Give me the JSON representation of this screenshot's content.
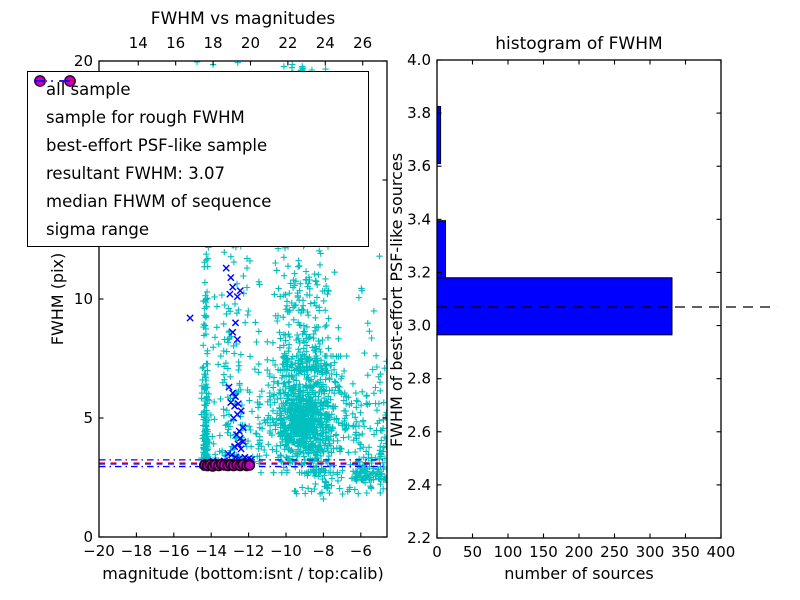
{
  "figure": {
    "left_title": "FWHM vs magnitudes",
    "right_title": "histogram of FWHM",
    "left_xlabel": "magnitude (bottom:isnt / top:calib)",
    "left_ylabel": "FWHM (pix)",
    "right_xlabel": "number of sources",
    "right_ylabel": "FWHM of best-effort PSF-like sources"
  },
  "legend": {
    "items": [
      {
        "label": "all sample",
        "marker": "plus"
      },
      {
        "label": "sample for rough FWHM",
        "marker": "x"
      },
      {
        "label": "best-effort PSF-like sample",
        "marker": "circle"
      },
      {
        "label": "resultant FWHM: 3.07",
        "marker": "dashed-blue"
      },
      {
        "label": "median FHWM of sequence",
        "marker": "dashed-red"
      },
      {
        "label": "sigma range",
        "marker": "dashdot-blue"
      }
    ]
  },
  "chart_data": [
    {
      "type": "scatter",
      "title": "FWHM vs magnitudes",
      "xlabel": "magnitude (bottom:isnt / top:calib)",
      "ylabel": "FWHM (pix)",
      "xlim": [
        -20,
        -4.6
      ],
      "ylim": [
        0,
        20
      ],
      "xticks_bottom": {
        "values": [
          -20,
          -18,
          -16,
          -14,
          -12,
          -10,
          -8,
          -6
        ],
        "labels": [
          "−20",
          "−18",
          "−16",
          "−14",
          "−12",
          "−10",
          "−8",
          "−6"
        ]
      },
      "xticks_top": {
        "values": [
          14,
          16,
          18,
          20,
          22,
          24,
          26
        ],
        "labels": [
          "14",
          "16",
          "18",
          "20",
          "22",
          "24",
          "26"
        ],
        "calib_minus_isnt": 31.9
      },
      "yticks": {
        "values": [
          0,
          5,
          10,
          15,
          20
        ],
        "labels": [
          "0",
          "5",
          "10",
          "15",
          "20"
        ]
      },
      "colors": {
        "all_sample": "#00bfbf",
        "rough": "#0000ff",
        "psf": "#bf00bf",
        "psf_edge": "#24001f",
        "resultant": "#0000ff",
        "median": "#ff0000",
        "sigma": "#0000ff"
      },
      "all_sample_clusters": [
        {
          "n": 150,
          "x": [
            -14.52,
            -14.08
          ],
          "y": [
            2.9,
            6.2
          ],
          "xd": "g",
          "yd": "low"
        },
        {
          "n": 55,
          "x": [
            -14.5,
            -14.15
          ],
          "y": [
            6.2,
            13
          ],
          "xd": "g",
          "yd": "low"
        },
        {
          "n": 6,
          "x": [
            -14.55,
            -14.0
          ],
          "y": [
            13,
            17
          ],
          "xd": "u",
          "yd": "u"
        },
        {
          "n": 95,
          "x": [
            -13.35,
            -12.35
          ],
          "y": [
            3.0,
            12
          ],
          "xd": "u",
          "yd": "low"
        },
        {
          "n": 40,
          "x": [
            -13.25,
            -12.4
          ],
          "y": [
            12,
            20
          ],
          "xd": "u",
          "yd": "u"
        },
        {
          "n": 28,
          "x": [
            -14.05,
            -13.35
          ],
          "y": [
            3.0,
            11
          ],
          "xd": "u",
          "yd": "low"
        },
        {
          "n": 620,
          "x": [
            -11.4,
            -6.3
          ],
          "y": [
            2.7,
            7.6
          ],
          "xd": "g",
          "yd": "g"
        },
        {
          "n": 300,
          "x": [
            -10.3,
            -7.7
          ],
          "y": [
            3.1,
            6.3
          ],
          "xd": "g",
          "yd": "g"
        },
        {
          "n": 230,
          "x": [
            -11.0,
            -7.2
          ],
          "y": [
            7.0,
            11.5
          ],
          "xd": "g",
          "yd": "low"
        },
        {
          "n": 80,
          "x": [
            -11.0,
            -7.3
          ],
          "y": [
            11.5,
            15.5
          ],
          "xd": "g",
          "yd": "u"
        },
        {
          "n": 32,
          "x": [
            -10.6,
            -7.6
          ],
          "y": [
            15.5,
            19.9
          ],
          "xd": "u",
          "yd": "u"
        },
        {
          "n": 14,
          "x": [
            -9.95,
            -8.6
          ],
          "y": [
            19.0,
            20.0
          ],
          "xd": "u",
          "yd": "u"
        },
        {
          "n": 130,
          "x": [
            -6.35,
            -4.6
          ],
          "y": [
            2.4,
            5.6
          ],
          "xd": "u",
          "yd": "low"
        },
        {
          "n": 30,
          "x": [
            -6.35,
            -4.6
          ],
          "y": [
            5.6,
            11.5
          ],
          "xd": "u",
          "yd": "low"
        },
        {
          "n": 70,
          "x": [
            -9.6,
            -4.6
          ],
          "y": [
            1.8,
            2.85
          ],
          "xd": "u",
          "yd": "u"
        },
        {
          "n": 45,
          "x": [
            -12.35,
            -11.4
          ],
          "y": [
            3.0,
            9.5
          ],
          "xd": "u",
          "yd": "low"
        },
        {
          "n": 12,
          "x": [
            -12.3,
            -11.4
          ],
          "y": [
            9.0,
            13.0
          ],
          "xd": "u",
          "yd": "u"
        }
      ],
      "all_sample_extra_points": [
        [
          -14.76,
          19.96
        ],
        [
          -13.9,
          19.85
        ],
        [
          -5.3,
          9.5
        ],
        [
          -5.0,
          11.8
        ],
        [
          -7.1,
          13.5
        ],
        [
          -8.0,
          1.6
        ]
      ],
      "rough_fwhm_points": [
        [
          -15.13,
          9.2
        ],
        [
          -13.2,
          11.3
        ],
        [
          -12.95,
          10.9
        ],
        [
          -12.85,
          10.5
        ],
        [
          -13.0,
          10.2
        ],
        [
          -12.6,
          10.1
        ],
        [
          -12.45,
          10.35
        ],
        [
          -12.7,
          9.0
        ],
        [
          -12.85,
          8.6
        ],
        [
          -12.6,
          8.3
        ],
        [
          -13.05,
          6.3
        ],
        [
          -12.85,
          6.05
        ],
        [
          -12.7,
          5.9
        ],
        [
          -12.95,
          5.65
        ],
        [
          -12.75,
          5.5
        ],
        [
          -12.55,
          5.6
        ],
        [
          -12.4,
          5.3
        ],
        [
          -12.6,
          5.15
        ],
        [
          -12.8,
          5.0
        ],
        [
          -12.3,
          4.6
        ],
        [
          -12.5,
          4.45
        ],
        [
          -12.65,
          4.3
        ],
        [
          -12.45,
          4.15
        ],
        [
          -12.3,
          4.0
        ],
        [
          -12.55,
          3.9
        ],
        [
          -12.75,
          3.8
        ],
        [
          -12.4,
          3.7
        ],
        [
          -13.1,
          3.5
        ],
        [
          -12.9,
          3.45
        ],
        [
          -12.7,
          3.35
        ],
        [
          -12.5,
          3.3
        ],
        [
          -12.2,
          3.35
        ],
        [
          -12.0,
          3.3
        ],
        [
          -11.85,
          3.25
        ],
        [
          -13.3,
          3.2
        ],
        [
          -13.15,
          3.15
        ],
        [
          -12.95,
          3.1
        ],
        [
          -12.6,
          3.15
        ],
        [
          -12.35,
          3.1
        ],
        [
          -12.1,
          3.2
        ],
        [
          -14.2,
          3.15
        ],
        [
          -13.9,
          3.2
        ]
      ],
      "psf_like_points": [
        [
          -14.35,
          3.02
        ],
        [
          -14.2,
          3.0
        ],
        [
          -14.05,
          3.05
        ],
        [
          -13.92,
          2.98
        ],
        [
          -13.78,
          3.04
        ],
        [
          -13.6,
          3.0
        ],
        [
          -13.45,
          3.06
        ],
        [
          -13.3,
          3.02
        ],
        [
          -13.1,
          3.0
        ],
        [
          -12.95,
          3.05
        ],
        [
          -12.8,
          3.0
        ],
        [
          -12.62,
          3.03
        ],
        [
          -12.45,
          3.0
        ],
        [
          -12.3,
          3.05
        ],
        [
          -12.1,
          3.0
        ],
        [
          -11.95,
          3.02
        ]
      ],
      "lines": [
        {
          "name": "resultant-fwhm-line",
          "y": 3.07,
          "color": "#0000ff",
          "style": "dashed"
        },
        {
          "name": "median-fwhm-line",
          "y": 3.11,
          "color": "#ff0000",
          "style": "dashed"
        },
        {
          "name": "sigma-lower-line",
          "y": 2.96,
          "color": "#0000ff",
          "style": "dashdot"
        },
        {
          "name": "sigma-upper-line",
          "y": 3.24,
          "color": "#0000ff",
          "style": "dashdot"
        }
      ],
      "resultant_fwhm": 3.07
    },
    {
      "type": "bar",
      "orientation": "horizontal",
      "title": "histogram of FWHM",
      "xlabel": "number of sources",
      "ylabel": "FWHM of best-effort PSF-like sources",
      "xlim": [
        0,
        400
      ],
      "ylim": [
        2.2,
        4.0
      ],
      "xticks": {
        "values": [
          0,
          50,
          100,
          150,
          200,
          250,
          300,
          350,
          400
        ],
        "labels": [
          "0",
          "50",
          "100",
          "150",
          "200",
          "250",
          "300",
          "350",
          "400"
        ]
      },
      "yticks": {
        "values": [
          2.2,
          2.4,
          2.6,
          2.8,
          3.0,
          3.2,
          3.4,
          3.6,
          3.8,
          4.0
        ],
        "labels": [
          "2.2",
          "2.4",
          "2.6",
          "2.8",
          "3.0",
          "3.2",
          "3.4",
          "3.6",
          "3.8",
          "4.0"
        ]
      },
      "bin_edges": [
        2.965,
        3.18,
        3.395,
        3.61,
        3.825
      ],
      "counts": [
        331,
        12,
        0,
        5
      ],
      "bar_color": "#0000ff",
      "bar_edge_color": "#000000",
      "dashed_line": {
        "y": 3.07,
        "color": "#000000",
        "extends_to_value": 479
      }
    }
  ]
}
